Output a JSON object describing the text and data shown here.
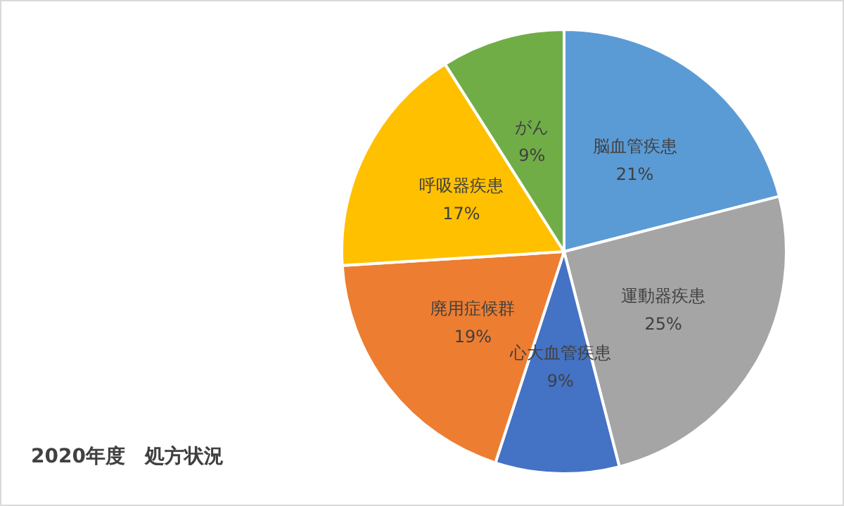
{
  "chart_data": {
    "type": "pie",
    "title": "2020年度　処方状況",
    "categories": [
      "脳血管疾患",
      "運動器疾患",
      "心大血管疾患",
      "廃用症候群",
      "呼吸器疾患",
      "がん"
    ],
    "values": [
      21,
      25,
      9,
      19,
      17,
      9
    ],
    "value_labels": [
      "21%",
      "25%",
      "9%",
      "19%",
      "17%",
      "9%"
    ],
    "colors": [
      "#5b9bd5",
      "#a5a5a5",
      "#4472c4",
      "#ed7d31",
      "#ffc000",
      "#70ad47"
    ],
    "legend": false
  }
}
